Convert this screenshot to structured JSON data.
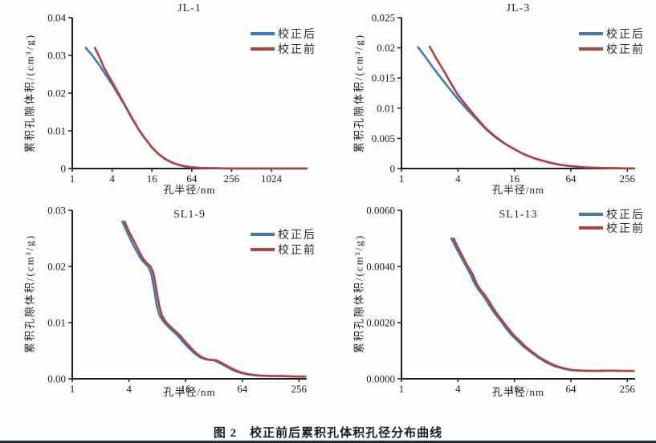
{
  "figure": {
    "label": "图 2",
    "caption": "校正前后累积孔体积孔径分布曲线"
  },
  "colors": {
    "after": "#3e7cb5",
    "before": "#b2423f",
    "axis": "#1c1c1c",
    "rule": "#232d39"
  },
  "chart_data": [
    {
      "type": "line",
      "title": "JL-1",
      "xlabel": "孔半径/nm",
      "ylabel": "累积孔隙体积/(cm³/g)",
      "x_scale": "log",
      "xlim": [
        1,
        3500
      ],
      "ylim": [
        0,
        0.04
      ],
      "grid": false,
      "legend_position": "top-right",
      "x_ticks": {
        "values": [
          1,
          4,
          16,
          64,
          256,
          1024
        ],
        "labels": [
          "1",
          "4",
          "16",
          "64",
          "256",
          "1024"
        ]
      },
      "y_ticks": {
        "values": [
          0,
          0.01,
          0.02,
          0.03,
          0.04
        ],
        "labels": [
          "0",
          "0.01",
          "0.02",
          "0.03",
          "0.04"
        ]
      },
      "series": [
        {
          "name": "校正后",
          "color": "#3e7cb5",
          "points": [
            [
              1.6,
              0.032
            ],
            [
              2,
              0.03
            ],
            [
              2.5,
              0.0277
            ],
            [
              3,
              0.0256
            ],
            [
              4,
              0.0223
            ],
            [
              5,
              0.0195
            ],
            [
              6,
              0.0172
            ],
            [
              8,
              0.0133
            ],
            [
              10,
              0.0104
            ],
            [
              12,
              0.0084
            ],
            [
              16,
              0.0056
            ],
            [
              20,
              0.0039
            ],
            [
              25,
              0.0026
            ],
            [
              32,
              0.0016
            ],
            [
              40,
              0.001
            ],
            [
              50,
              0.0006
            ],
            [
              64,
              0.00035
            ],
            [
              90,
              0.00015
            ],
            [
              128,
              8e-05
            ],
            [
              256,
              3e-05
            ],
            [
              512,
              2e-05
            ],
            [
              1024,
              2e-05
            ],
            [
              2000,
              2e-05
            ],
            [
              3500,
              2e-05
            ]
          ]
        },
        {
          "name": "校正前",
          "color": "#b2423f",
          "points": [
            [
              2.2,
              0.032
            ],
            [
              2.6,
              0.0294
            ],
            [
              3,
              0.0268
            ],
            [
              4,
              0.023
            ],
            [
              5,
              0.0199
            ],
            [
              6,
              0.0174
            ],
            [
              8,
              0.0134
            ],
            [
              10,
              0.0105
            ],
            [
              12,
              0.0085
            ],
            [
              16,
              0.0056
            ],
            [
              20,
              0.0039
            ],
            [
              25,
              0.0026
            ],
            [
              32,
              0.0016
            ],
            [
              40,
              0.001
            ],
            [
              50,
              0.0006
            ],
            [
              64,
              0.00035
            ],
            [
              90,
              0.00015
            ],
            [
              128,
              8e-05
            ],
            [
              256,
              3e-05
            ],
            [
              512,
              2e-05
            ],
            [
              1024,
              2e-05
            ],
            [
              2000,
              2e-05
            ],
            [
              3500,
              2e-05
            ]
          ]
        }
      ]
    },
    {
      "type": "line",
      "title": "JL-3",
      "xlabel": "孔半径/nm",
      "ylabel": "累积孔隙体积/(cm³/g)",
      "x_scale": "log",
      "xlim": [
        1,
        310
      ],
      "ylim": [
        0,
        0.025
      ],
      "grid": false,
      "legend_position": "top-right",
      "x_ticks": {
        "values": [
          1,
          4,
          16,
          64,
          256
        ],
        "labels": [
          "1",
          "4",
          "16",
          "64",
          "256"
        ]
      },
      "y_ticks": {
        "values": [
          0,
          0.005,
          0.01,
          0.015,
          0.02,
          0.025
        ],
        "labels": [
          "0",
          "0.005",
          "0.01",
          "0.015",
          "0.02",
          "0.025"
        ]
      },
      "series": [
        {
          "name": "校正后",
          "color": "#3e7cb5",
          "points": [
            [
              1.5,
              0.0201
            ],
            [
              1.8,
              0.0185
            ],
            [
              2.2,
              0.0166
            ],
            [
              2.7,
              0.0148
            ],
            [
              3.3,
              0.0131
            ],
            [
              4,
              0.0115
            ],
            [
              5,
              0.0098
            ],
            [
              6,
              0.0085
            ],
            [
              8,
              0.0065
            ],
            [
              10,
              0.0052
            ],
            [
              13,
              0.004
            ],
            [
              16,
              0.0032
            ],
            [
              20,
              0.0024
            ],
            [
              26,
              0.0017
            ],
            [
              32,
              0.0013
            ],
            [
              40,
              0.0009
            ],
            [
              50,
              0.0006
            ],
            [
              64,
              0.0004
            ],
            [
              90,
              0.0002
            ],
            [
              128,
              0.0001
            ],
            [
              180,
              5e-05
            ],
            [
              256,
              2e-05
            ],
            [
              300,
              2e-05
            ]
          ]
        },
        {
          "name": "校正前",
          "color": "#b2423f",
          "points": [
            [
              2,
              0.0202
            ],
            [
              2.4,
              0.018
            ],
            [
              2.9,
              0.0159
            ],
            [
              3.4,
              0.014
            ],
            [
              4,
              0.0122
            ],
            [
              5,
              0.0103
            ],
            [
              6,
              0.0088
            ],
            [
              8,
              0.0066
            ],
            [
              10,
              0.0053
            ],
            [
              13,
              0.004
            ],
            [
              16,
              0.0032
            ],
            [
              20,
              0.0024
            ],
            [
              26,
              0.0017
            ],
            [
              32,
              0.0013
            ],
            [
              40,
              0.0009
            ],
            [
              50,
              0.0006
            ],
            [
              64,
              0.0004
            ],
            [
              90,
              0.0002
            ],
            [
              128,
              0.0001
            ],
            [
              180,
              5e-05
            ],
            [
              256,
              2e-05
            ],
            [
              300,
              2e-05
            ]
          ]
        }
      ]
    },
    {
      "type": "line",
      "title": "SL1-9",
      "xlabel": "孔半径/nm",
      "ylabel": "累积孔隙体积/(cm³/g)",
      "x_scale": "log",
      "xlim": [
        1,
        310
      ],
      "ylim": [
        0,
        0.03
      ],
      "grid": false,
      "legend_position": "top-right",
      "x_ticks": {
        "values": [
          1,
          4,
          16,
          64,
          256
        ],
        "labels": [
          "1",
          "4",
          "16",
          "64",
          "256"
        ]
      },
      "y_ticks": {
        "values": [
          0,
          0.01,
          0.02,
          0.03
        ],
        "labels": [
          "0.00",
          "0.01",
          "0.02",
          "0.03"
        ]
      },
      "series": [
        {
          "name": "校正后",
          "color": "#3e7cb5",
          "points": [
            [
              3.4,
              0.028
            ],
            [
              3.8,
              0.0262
            ],
            [
              4.3,
              0.0243
            ],
            [
              4.8,
              0.0228
            ],
            [
              5.3,
              0.0215
            ],
            [
              5.8,
              0.0207
            ],
            [
              6.4,
              0.02
            ],
            [
              6.9,
              0.0188
            ],
            [
              7.4,
              0.016
            ],
            [
              7.9,
              0.013
            ],
            [
              8.5,
              0.0112
            ],
            [
              9.5,
              0.01
            ],
            [
              11,
              0.0089
            ],
            [
              13,
              0.0078
            ],
            [
              15,
              0.0066
            ],
            [
              17,
              0.0056
            ],
            [
              20,
              0.0045
            ],
            [
              23,
              0.0038
            ],
            [
              27,
              0.0034
            ],
            [
              32,
              0.0033
            ],
            [
              36,
              0.0029
            ],
            [
              42,
              0.0023
            ],
            [
              50,
              0.0016
            ],
            [
              60,
              0.0011
            ],
            [
              72,
              0.0008
            ],
            [
              90,
              0.0006
            ],
            [
              120,
              0.0005
            ],
            [
              160,
              0.0005
            ],
            [
              220,
              0.0004
            ],
            [
              290,
              0.0004
            ]
          ]
        },
        {
          "name": "校正前",
          "color": "#b2423f",
          "points": [
            [
              3.6,
              0.028
            ],
            [
              4,
              0.0262
            ],
            [
              4.6,
              0.0243
            ],
            [
              5.1,
              0.0228
            ],
            [
              5.6,
              0.0215
            ],
            [
              6.1,
              0.0207
            ],
            [
              6.8,
              0.02
            ],
            [
              7.3,
              0.0188
            ],
            [
              7.8,
              0.016
            ],
            [
              8.4,
              0.013
            ],
            [
              9,
              0.0112
            ],
            [
              10,
              0.01
            ],
            [
              11.7,
              0.0089
            ],
            [
              13.8,
              0.0078
            ],
            [
              15.9,
              0.0066
            ],
            [
              18,
              0.0056
            ],
            [
              21,
              0.0045
            ],
            [
              24,
              0.0038
            ],
            [
              28,
              0.0034
            ],
            [
              34,
              0.0033
            ],
            [
              38,
              0.0029
            ],
            [
              44,
              0.0023
            ],
            [
              53,
              0.0016
            ],
            [
              63,
              0.0011
            ],
            [
              76,
              0.0008
            ],
            [
              95,
              0.0006
            ],
            [
              127,
              0.0005
            ],
            [
              170,
              0.0005
            ],
            [
              233,
              0.0004
            ],
            [
              300,
              0.0004
            ]
          ]
        }
      ]
    },
    {
      "type": "line",
      "title": "SL1-13",
      "xlabel": "孔半径/nm",
      "ylabel": "累积孔隙体积/(cm³/g)",
      "x_scale": "log",
      "xlim": [
        1,
        310
      ],
      "ylim": [
        0,
        0.006
      ],
      "grid": false,
      "legend_position": "top-right",
      "x_ticks": {
        "values": [
          1,
          4,
          16,
          64,
          256
        ],
        "labels": [
          "1",
          "4",
          "16",
          "64",
          "256"
        ]
      },
      "y_ticks": {
        "values": [
          0,
          0.002,
          0.004,
          0.006
        ],
        "labels": [
          "0.0000",
          "0.0020",
          "0.0040",
          "0.0060"
        ]
      },
      "series": [
        {
          "name": "校正后",
          "color": "#3e7cb5",
          "points": [
            [
              3.4,
              0.005
            ],
            [
              3.8,
              0.00468
            ],
            [
              4.3,
              0.00435
            ],
            [
              4.8,
              0.00405
            ],
            [
              5.4,
              0.00375
            ],
            [
              6,
              0.0034
            ],
            [
              6.6,
              0.00318
            ],
            [
              7.3,
              0.003
            ],
            [
              8,
              0.0028
            ],
            [
              9,
              0.00252
            ],
            [
              10,
              0.0023
            ],
            [
              11.5,
              0.00205
            ],
            [
              13,
              0.0018
            ],
            [
              15,
              0.00155
            ],
            [
              17,
              0.00138
            ],
            [
              20,
              0.00115
            ],
            [
              24,
              0.00095
            ],
            [
              29,
              0.00075
            ],
            [
              35,
              0.00058
            ],
            [
              43,
              0.00045
            ],
            [
              53,
              0.00036
            ],
            [
              64,
              0.00031
            ],
            [
              80,
              0.00029
            ],
            [
              110,
              0.00028
            ],
            [
              160,
              0.00029
            ],
            [
              220,
              0.00028
            ],
            [
              290,
              0.00028
            ]
          ]
        },
        {
          "name": "校正前",
          "color": "#b2423f",
          "points": [
            [
              3.6,
              0.005
            ],
            [
              4,
              0.00468
            ],
            [
              4.5,
              0.00435
            ],
            [
              5,
              0.00405
            ],
            [
              5.7,
              0.00375
            ],
            [
              6.3,
              0.0034
            ],
            [
              6.9,
              0.00318
            ],
            [
              7.7,
              0.003
            ],
            [
              8.4,
              0.0028
            ],
            [
              9.5,
              0.00252
            ],
            [
              10.5,
              0.0023
            ],
            [
              12,
              0.00205
            ],
            [
              13.7,
              0.0018
            ],
            [
              15.8,
              0.00155
            ],
            [
              17.9,
              0.00138
            ],
            [
              21,
              0.00115
            ],
            [
              25,
              0.00095
            ],
            [
              30,
              0.00075
            ],
            [
              37,
              0.00058
            ],
            [
              45,
              0.00045
            ],
            [
              56,
              0.00036
            ],
            [
              67,
              0.00031
            ],
            [
              84,
              0.00029
            ],
            [
              116,
              0.00028
            ],
            [
              168,
              0.00029
            ],
            [
              231,
              0.00028
            ],
            [
              300,
              0.00028
            ]
          ]
        }
      ]
    }
  ]
}
